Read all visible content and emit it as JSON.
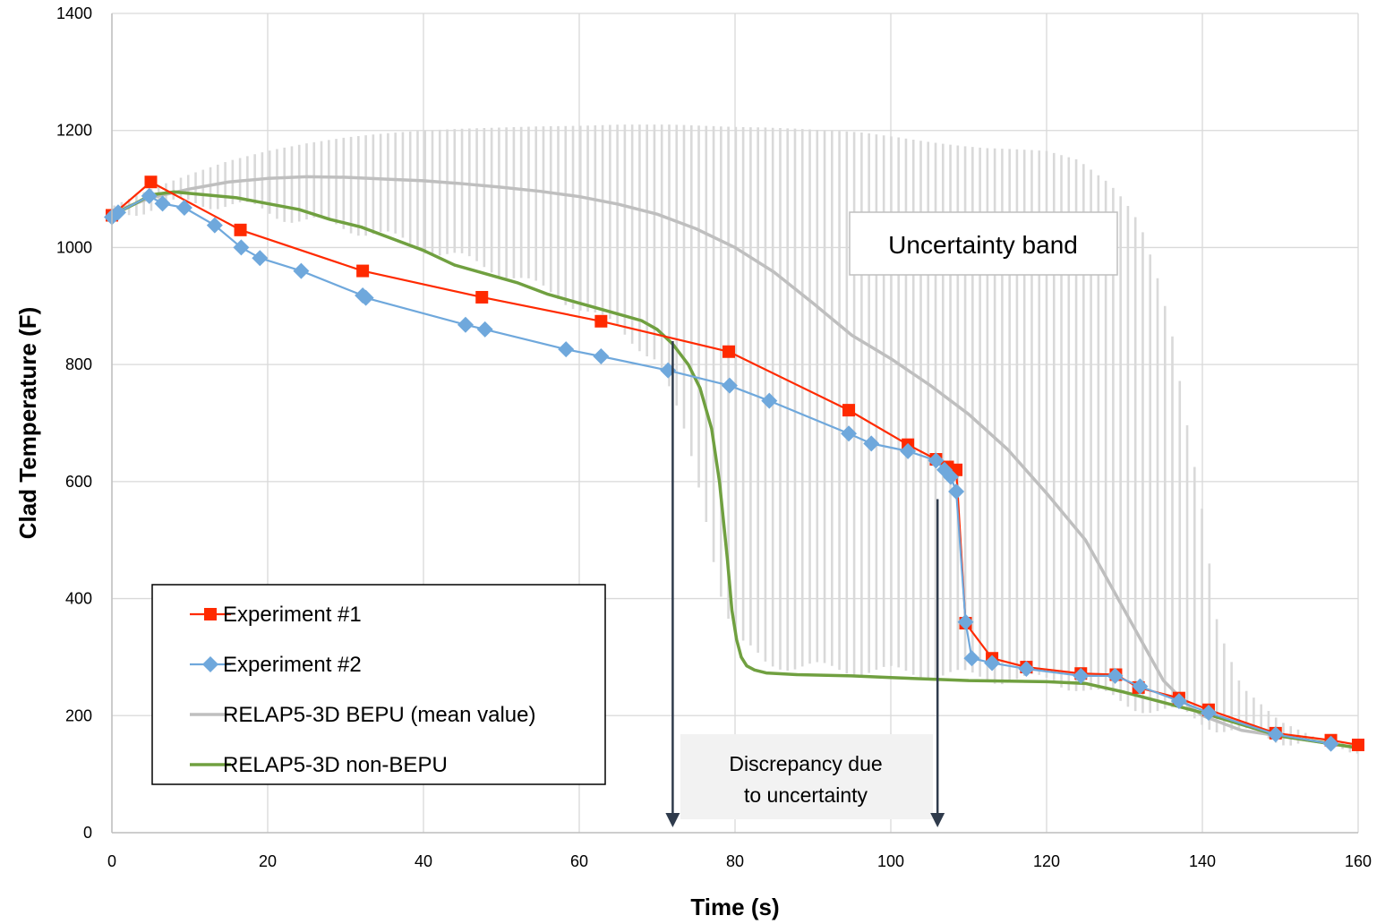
{
  "chart_data": {
    "type": "line",
    "title": "",
    "xlabel": "Time (s)",
    "ylabel": "Clad Temperature  (F)",
    "xlim": [
      0,
      160
    ],
    "ylim": [
      0,
      1400
    ],
    "xticks": [
      0,
      20,
      40,
      60,
      80,
      100,
      120,
      140,
      160
    ],
    "yticks": [
      0,
      200,
      400,
      600,
      800,
      1000,
      1200,
      1400
    ],
    "grid": true,
    "legend_position": "bottom-left",
    "series": [
      {
        "name": "Experiment #1",
        "color": "#ff2a00",
        "marker": "square",
        "x": [
          0,
          5,
          16.5,
          32.2,
          47.5,
          62.8,
          79.2,
          94.6,
          102.2,
          105.8,
          107.3,
          108.4,
          109.6,
          113,
          117.4,
          124.4,
          128.9,
          131.8,
          137,
          140.8,
          149.4,
          156.5,
          160
        ],
        "y": [
          1055,
          1112,
          1030,
          960,
          915,
          874,
          822,
          722,
          663,
          638,
          625,
          620,
          358,
          298,
          283,
          272,
          270,
          248,
          230,
          210,
          170,
          158,
          150
        ]
      },
      {
        "name": "Experiment #2",
        "color": "#6fa8dc",
        "marker": "diamond",
        "x": [
          0,
          0.8,
          4.8,
          6.5,
          9.3,
          13.2,
          16.6,
          19,
          24.3,
          32.2,
          32.6,
          45.4,
          47.9,
          58.3,
          62.8,
          71.4,
          79.3,
          84.4,
          94.6,
          97.5,
          102.2,
          105.8,
          106.9,
          107.7,
          108.4,
          109.6,
          110.4,
          113,
          117.4,
          124.4,
          128.8,
          132,
          137,
          140.8,
          149.4,
          156.5
        ],
        "y": [
          1052,
          1060,
          1088,
          1075,
          1068,
          1038,
          1000,
          982,
          960,
          918,
          914,
          868,
          860,
          826,
          814,
          790,
          764,
          738,
          682,
          665,
          652,
          636,
          620,
          608,
          583,
          360,
          298,
          290,
          280,
          268,
          268,
          250,
          225,
          205,
          168,
          152
        ]
      },
      {
        "name": "RELAP5-3D BEPU (mean value)",
        "color": "#bfbfbf",
        "marker": "none",
        "x": [
          0,
          5,
          10,
          15,
          20,
          25,
          30,
          35,
          40,
          45,
          50,
          55,
          60,
          65,
          70,
          75,
          80,
          85,
          90,
          95,
          100,
          105,
          110,
          115,
          120,
          125,
          130,
          135,
          138,
          140,
          143,
          145,
          150,
          155,
          160
        ],
        "y": [
          1060,
          1085,
          1100,
          1112,
          1118,
          1121,
          1120,
          1117,
          1114,
          1109,
          1103,
          1096,
          1087,
          1074,
          1057,
          1032,
          1000,
          958,
          905,
          850,
          810,
          765,
          715,
          655,
          580,
          500,
          380,
          260,
          220,
          200,
          185,
          175,
          165,
          155,
          145
        ]
      },
      {
        "name": "RELAP5-3D non-BEPU",
        "color": "#70a040",
        "marker": "none",
        "x": [
          0,
          3,
          5,
          8,
          12,
          16,
          20,
          24,
          28,
          32,
          36,
          40,
          44,
          48,
          52,
          56,
          60,
          64,
          68,
          70,
          72,
          74,
          75.5,
          77,
          78,
          79,
          79.6,
          80.2,
          80.8,
          81.5,
          82.5,
          84,
          88,
          95,
          100,
          110,
          120,
          125,
          130,
          140,
          150,
          160
        ],
        "y": [
          1055,
          1075,
          1090,
          1095,
          1090,
          1085,
          1075,
          1065,
          1048,
          1035,
          1015,
          995,
          970,
          955,
          940,
          920,
          905,
          890,
          875,
          860,
          835,
          800,
          760,
          690,
          600,
          470,
          380,
          330,
          300,
          285,
          278,
          273,
          270,
          268,
          265,
          260,
          258,
          255,
          240,
          205,
          165,
          145
        ]
      }
    ],
    "uncertainty_band": {
      "name": "Uncertainty band",
      "color": "#d9d9d9",
      "x": [
        0,
        5,
        10,
        15,
        20,
        25,
        30,
        35,
        40,
        45,
        50,
        55,
        60,
        65,
        70,
        72,
        74,
        76,
        78,
        80,
        84,
        88,
        92,
        96,
        100,
        104,
        108,
        112,
        116,
        120,
        124,
        126,
        128,
        130,
        132,
        134,
        136,
        138,
        140,
        142,
        145,
        150,
        155,
        160
      ],
      "low": [
        1050,
        1070,
        1075,
        1075,
        1060,
        1045,
        1035,
        1020,
        1000,
        980,
        960,
        930,
        900,
        860,
        810,
        740,
        660,
        560,
        420,
        330,
        290,
        285,
        280,
        278,
        275,
        272,
        270,
        265,
        262,
        260,
        250,
        240,
        230,
        220,
        215,
        210,
        205,
        200,
        190,
        180,
        170,
        160,
        150,
        145
      ],
      "high": [
        1070,
        1100,
        1125,
        1148,
        1165,
        1178,
        1188,
        1195,
        1200,
        1203,
        1205,
        1207,
        1208,
        1210,
        1210,
        1210,
        1209,
        1208,
        1207,
        1206,
        1205,
        1203,
        1200,
        1197,
        1190,
        1182,
        1175,
        1170,
        1168,
        1165,
        1150,
        1130,
        1110,
        1080,
        1040,
        960,
        860,
        700,
        550,
        350,
        250,
        190,
        160,
        150
      ]
    },
    "annotations": [
      {
        "text": "Uncertainty band",
        "x": 112,
        "y": 1010
      },
      {
        "text": "Discrepancy due to uncertainty",
        "lines": [
          "Discrepancy due",
          "to uncertainty"
        ]
      }
    ],
    "arrows": [
      {
        "x": 72,
        "y_from": 840,
        "y_to": 0
      },
      {
        "x": 106,
        "y_from": 570,
        "y_to": 0
      }
    ]
  }
}
